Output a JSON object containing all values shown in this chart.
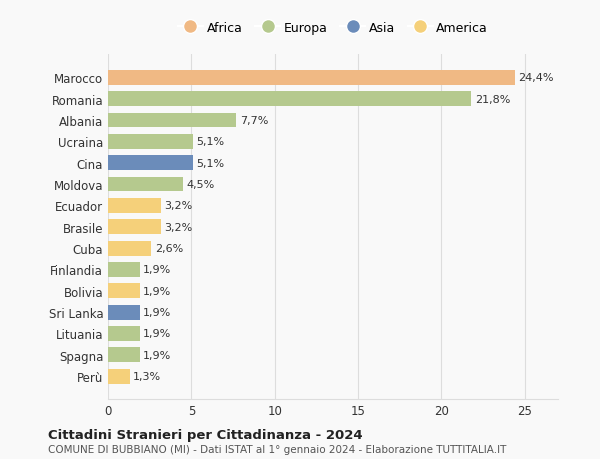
{
  "countries": [
    "Marocco",
    "Romania",
    "Albania",
    "Ucraina",
    "Cina",
    "Moldova",
    "Ecuador",
    "Brasile",
    "Cuba",
    "Finlandia",
    "Bolivia",
    "Sri Lanka",
    "Lituania",
    "Spagna",
    "Perù"
  ],
  "values": [
    24.4,
    21.8,
    7.7,
    5.1,
    5.1,
    4.5,
    3.2,
    3.2,
    2.6,
    1.9,
    1.9,
    1.9,
    1.9,
    1.9,
    1.3
  ],
  "labels": [
    "24,4%",
    "21,8%",
    "7,7%",
    "5,1%",
    "5,1%",
    "4,5%",
    "3,2%",
    "3,2%",
    "2,6%",
    "1,9%",
    "1,9%",
    "1,9%",
    "1,9%",
    "1,9%",
    "1,3%"
  ],
  "colors": [
    "#f0b984",
    "#b5c98e",
    "#b5c98e",
    "#b5c98e",
    "#6b8cba",
    "#b5c98e",
    "#f5d07a",
    "#f5d07a",
    "#f5d07a",
    "#b5c98e",
    "#f5d07a",
    "#6b8cba",
    "#b5c98e",
    "#b5c98e",
    "#f5d07a"
  ],
  "legend_labels": [
    "Africa",
    "Europa",
    "Asia",
    "America"
  ],
  "legend_colors": [
    "#f0b984",
    "#b5c98e",
    "#6b8cba",
    "#f5d07a"
  ],
  "title": "Cittadini Stranieri per Cittadinanza - 2024",
  "subtitle": "COMUNE DI BUBBIANO (MI) - Dati ISTAT al 1° gennaio 2024 - Elaborazione TUTTITALIA.IT",
  "xlim": [
    0,
    27
  ],
  "xticks": [
    0,
    5,
    10,
    15,
    20,
    25
  ],
  "background_color": "#f9f9f9",
  "grid_color": "#dddddd"
}
